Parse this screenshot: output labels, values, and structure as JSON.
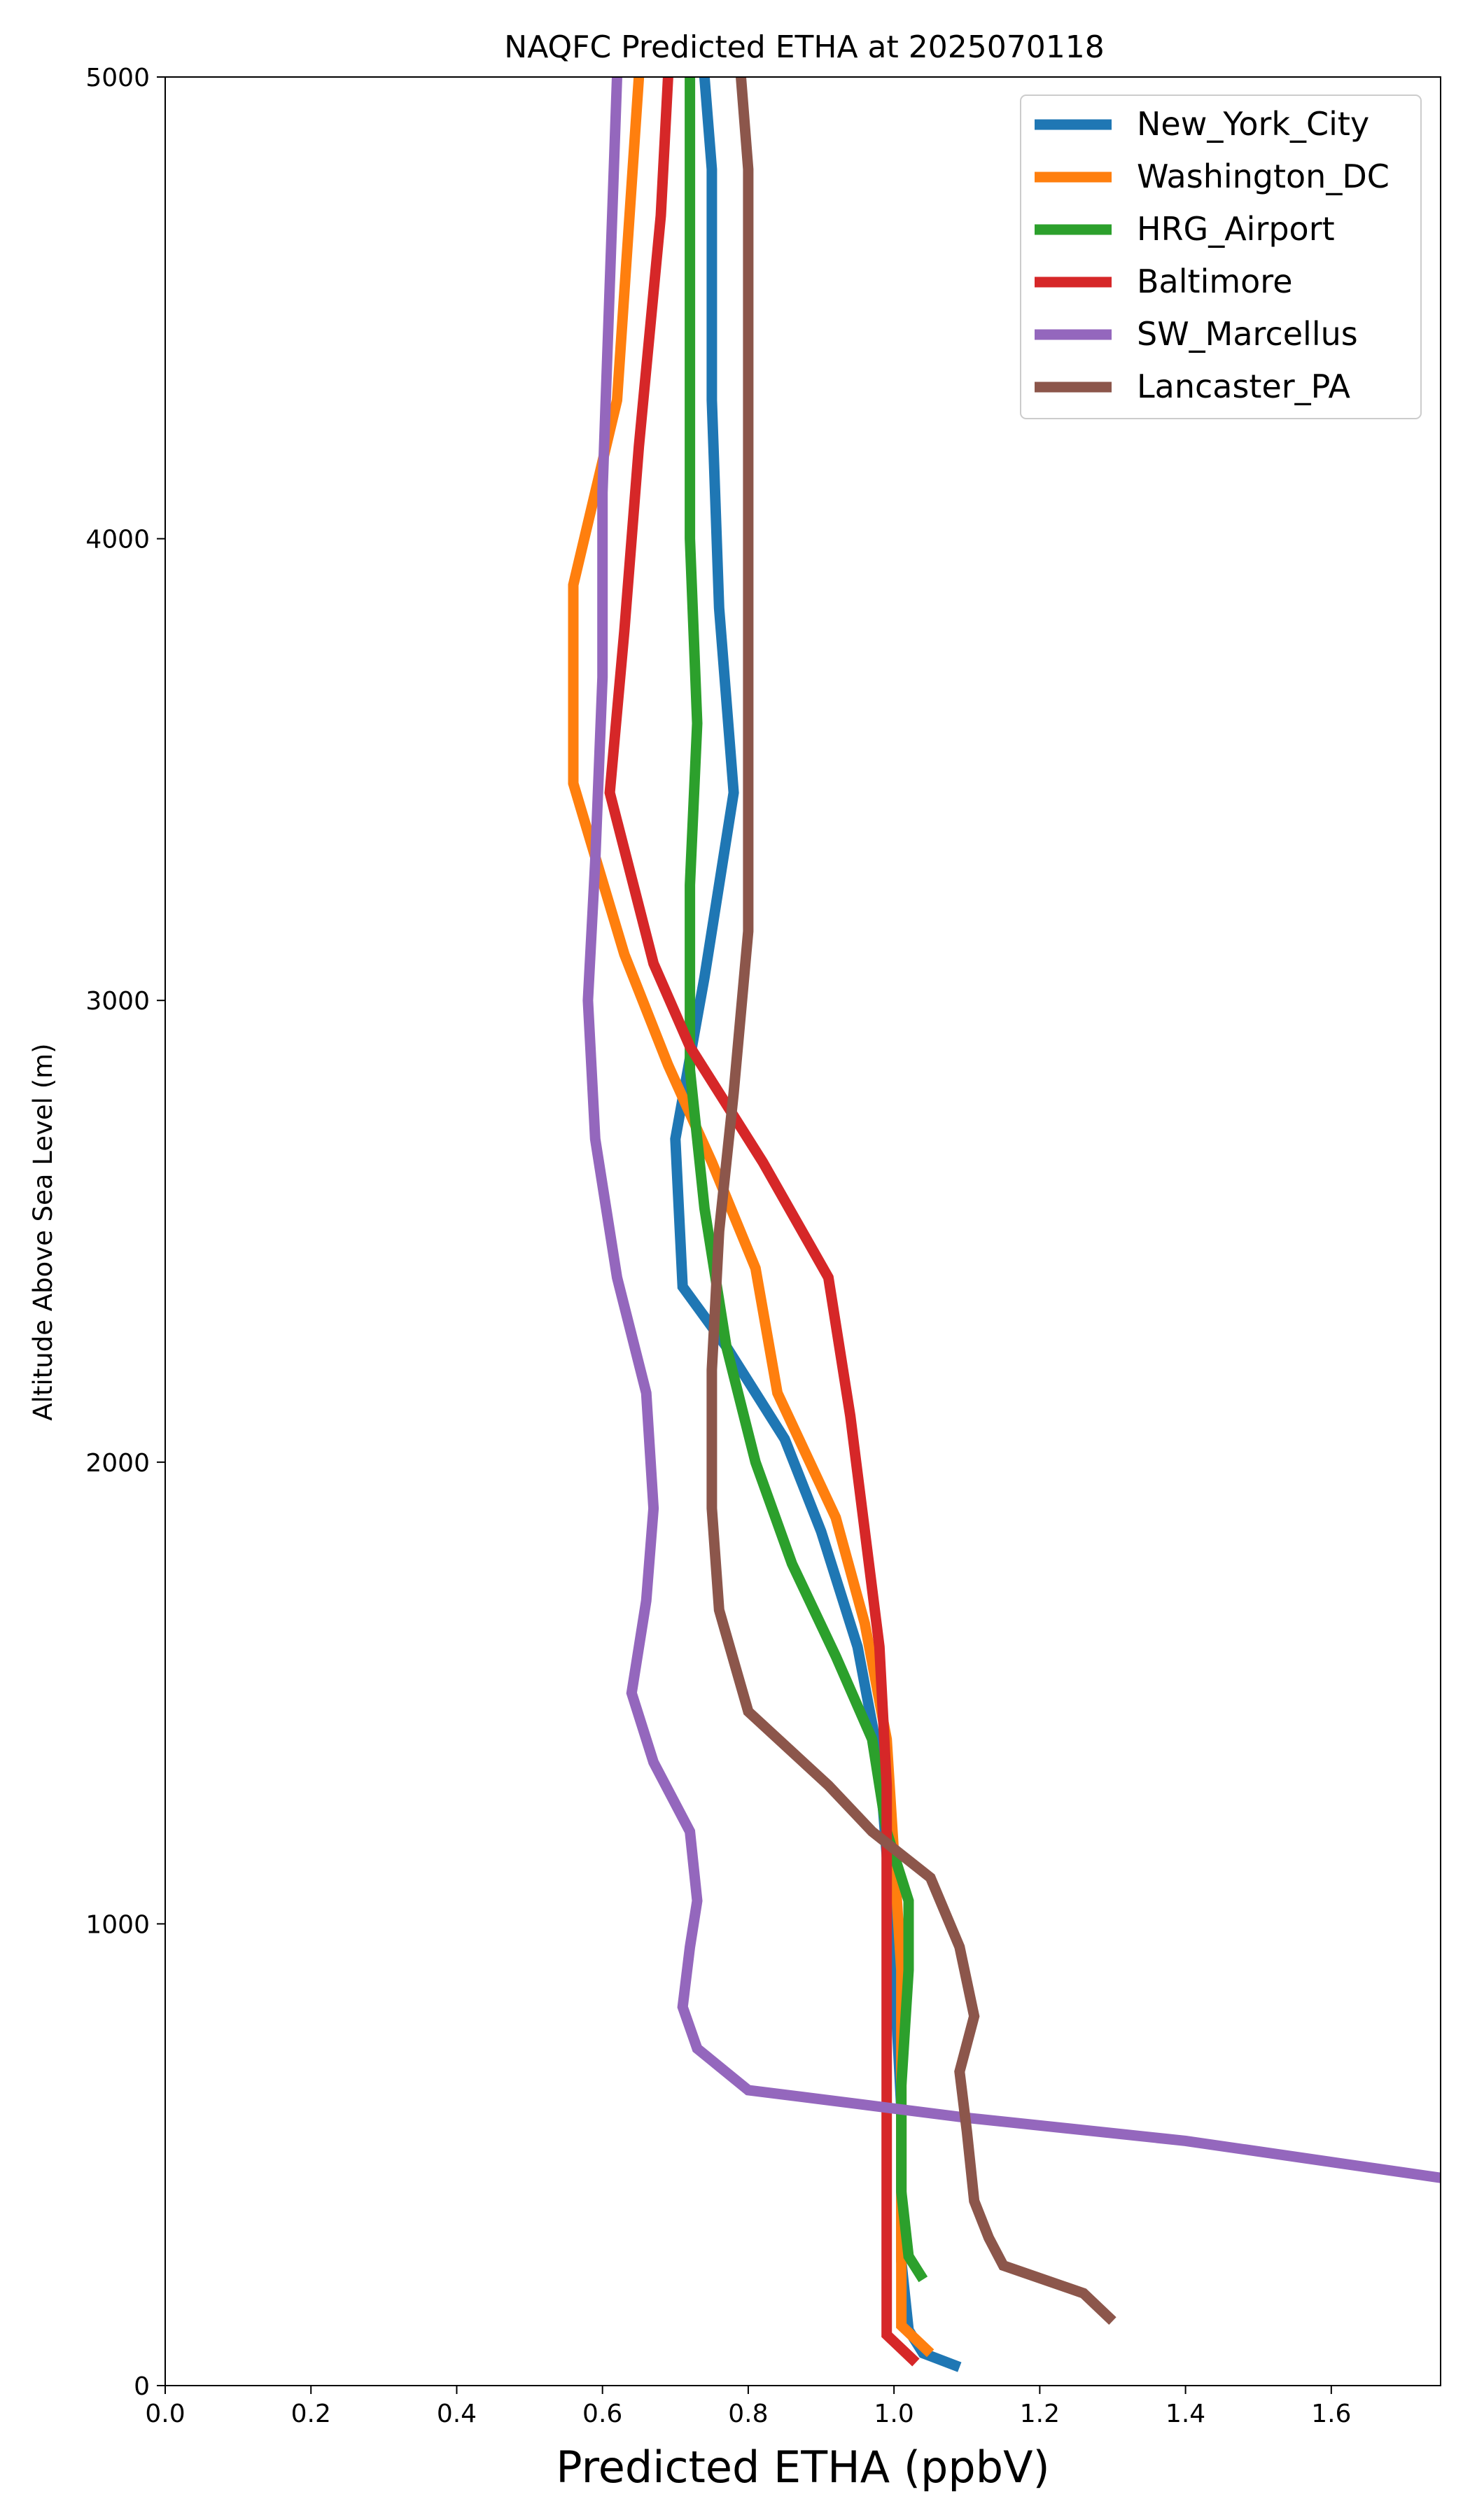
{
  "chart_data": {
    "type": "line",
    "title": "NAQFC Predicted ETHA at 2025070118",
    "xlabel": "Predicted ETHA (ppbV)",
    "ylabel": "Altitude Above Sea Level (m)",
    "xlim": [
      0,
      1.75
    ],
    "ylim": [
      0,
      5000
    ],
    "xticks": [
      "0.0",
      "0.2",
      "0.4",
      "0.6",
      "0.8",
      "1.0",
      "1.2",
      "1.4",
      "1.6"
    ],
    "xtick_values": [
      0,
      0.2,
      0.4,
      0.6,
      0.8,
      1.0,
      1.2,
      1.4,
      1.6
    ],
    "yticks": [
      "0",
      "1000",
      "2000",
      "3000",
      "4000",
      "5000"
    ],
    "ytick_values": [
      0,
      1000,
      2000,
      3000,
      4000,
      5000
    ],
    "grid": false,
    "legend_position": "top-right",
    "series": [
      {
        "name": "New_York_City",
        "color": "#1f77b4",
        "points": [
          [
            1.09,
            40
          ],
          [
            1.04,
            70
          ],
          [
            1.02,
            120
          ],
          [
            1.01,
            270
          ],
          [
            1.01,
            600
          ],
          [
            1.0,
            900
          ],
          [
            0.99,
            1150
          ],
          [
            0.98,
            1350
          ],
          [
            0.95,
            1600
          ],
          [
            0.9,
            1850
          ],
          [
            0.85,
            2050
          ],
          [
            0.77,
            2250
          ],
          [
            0.71,
            2380
          ],
          [
            0.7,
            2700
          ],
          [
            0.74,
            3050
          ],
          [
            0.78,
            3450
          ],
          [
            0.76,
            3850
          ],
          [
            0.75,
            4300
          ],
          [
            0.75,
            4800
          ],
          [
            0.74,
            5000
          ]
        ]
      },
      {
        "name": "Washington_DC",
        "color": "#ff7f0e",
        "points": [
          [
            1.05,
            70
          ],
          [
            1.01,
            130
          ],
          [
            1.01,
            300
          ],
          [
            1.01,
            600
          ],
          [
            1.01,
            900
          ],
          [
            1.0,
            1150
          ],
          [
            0.99,
            1400
          ],
          [
            0.96,
            1650
          ],
          [
            0.92,
            1880
          ],
          [
            0.84,
            2150
          ],
          [
            0.81,
            2420
          ],
          [
            0.75,
            2650
          ],
          [
            0.69,
            2860
          ],
          [
            0.63,
            3100
          ],
          [
            0.56,
            3470
          ],
          [
            0.56,
            3900
          ],
          [
            0.62,
            4300
          ],
          [
            0.65,
            5000
          ]
        ]
      },
      {
        "name": "HRG_Airport",
        "color": "#2ca02c",
        "points": [
          [
            1.04,
            230
          ],
          [
            1.02,
            280
          ],
          [
            1.01,
            420
          ],
          [
            1.01,
            650
          ],
          [
            1.02,
            900
          ],
          [
            1.02,
            1050
          ],
          [
            0.99,
            1200
          ],
          [
            0.97,
            1400
          ],
          [
            0.92,
            1580
          ],
          [
            0.86,
            1780
          ],
          [
            0.81,
            2000
          ],
          [
            0.77,
            2250
          ],
          [
            0.74,
            2550
          ],
          [
            0.72,
            2850
          ],
          [
            0.72,
            3250
          ],
          [
            0.73,
            3600
          ],
          [
            0.72,
            4000
          ],
          [
            0.72,
            4450
          ],
          [
            0.72,
            5000
          ]
        ]
      },
      {
        "name": "Baltimore",
        "color": "#d62728",
        "points": [
          [
            1.03,
            50
          ],
          [
            0.99,
            110
          ],
          [
            0.99,
            180
          ],
          [
            0.99,
            400
          ],
          [
            0.99,
            700
          ],
          [
            0.99,
            1000
          ],
          [
            0.99,
            1300
          ],
          [
            0.98,
            1600
          ],
          [
            0.96,
            1850
          ],
          [
            0.94,
            2100
          ],
          [
            0.91,
            2400
          ],
          [
            0.82,
            2650
          ],
          [
            0.72,
            2900
          ],
          [
            0.67,
            3080
          ],
          [
            0.61,
            3450
          ],
          [
            0.63,
            3800
          ],
          [
            0.65,
            4200
          ],
          [
            0.68,
            4700
          ],
          [
            0.69,
            5000
          ]
        ]
      },
      {
        "name": "SW_Marcellus",
        "color": "#9467bd",
        "points": [
          [
            1.75,
            450
          ],
          [
            1.4,
            530
          ],
          [
            1.1,
            580
          ],
          [
            0.95,
            610
          ],
          [
            0.8,
            640
          ],
          [
            0.73,
            730
          ],
          [
            0.71,
            820
          ],
          [
            0.72,
            950
          ],
          [
            0.73,
            1050
          ],
          [
            0.72,
            1200
          ],
          [
            0.67,
            1350
          ],
          [
            0.64,
            1500
          ],
          [
            0.66,
            1700
          ],
          [
            0.67,
            1900
          ],
          [
            0.66,
            2150
          ],
          [
            0.62,
            2400
          ],
          [
            0.59,
            2700
          ],
          [
            0.58,
            3000
          ],
          [
            0.59,
            3300
          ],
          [
            0.6,
            3700
          ],
          [
            0.6,
            4100
          ],
          [
            0.61,
            4550
          ],
          [
            0.62,
            5000
          ]
        ]
      },
      {
        "name": "Lancaster_PA",
        "color": "#8c564b",
        "points": [
          [
            1.3,
            140
          ],
          [
            1.26,
            200
          ],
          [
            1.15,
            260
          ],
          [
            1.13,
            320
          ],
          [
            1.11,
            400
          ],
          [
            1.1,
            550
          ],
          [
            1.09,
            680
          ],
          [
            1.11,
            800
          ],
          [
            1.09,
            950
          ],
          [
            1.05,
            1100
          ],
          [
            0.97,
            1200
          ],
          [
            0.91,
            1300
          ],
          [
            0.8,
            1460
          ],
          [
            0.76,
            1680
          ],
          [
            0.75,
            1900
          ],
          [
            0.75,
            2200
          ],
          [
            0.76,
            2500
          ],
          [
            0.78,
            2800
          ],
          [
            0.8,
            3150
          ],
          [
            0.8,
            3500
          ],
          [
            0.8,
            4000
          ],
          [
            0.8,
            4400
          ],
          [
            0.8,
            4800
          ],
          [
            0.79,
            5000
          ]
        ]
      }
    ]
  }
}
